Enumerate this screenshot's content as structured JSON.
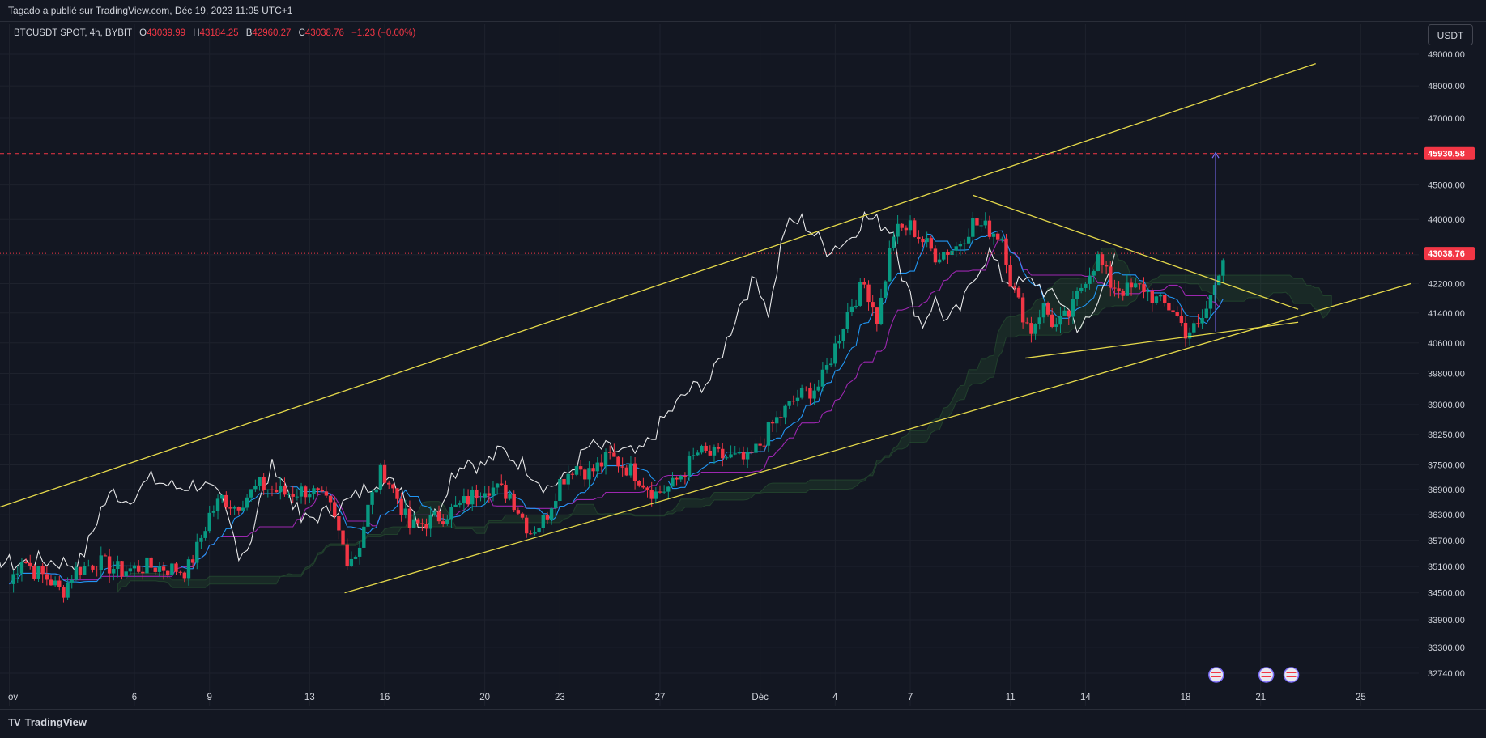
{
  "header": {
    "publish_text": "Tagado a publié sur TradingView.com, Déc 19, 2023 11:05 UTC+1"
  },
  "legend": {
    "symbol": "BTCUSDT SPOT, 4h, BYBIT",
    "open_label": "O",
    "open_value": "43039.99",
    "high_label": "H",
    "high_value": "43184.25",
    "low_label": "B",
    "low_value": "42960.27",
    "close_label": "C",
    "close_value": "43038.76",
    "change": "−1.23 (−0.00%)"
  },
  "currency_button": "USDT",
  "footer": {
    "brand": "TradingView",
    "logo": "TV"
  },
  "colors": {
    "background": "#131722",
    "up": "#089981",
    "down": "#f23645",
    "trendline": "#e5d94a",
    "lagging": "#ffffff",
    "kijun": "#9c27b0",
    "tenkan": "#2196f3",
    "target_line": "#f23645",
    "projection": "#7b6cf6"
  },
  "chart_data": {
    "type": "candlestick",
    "timeframe": "4h",
    "y_axis": {
      "ticks": [
        49000,
        48000,
        47000,
        45000,
        44000,
        43000,
        42200,
        41400,
        40600,
        39800,
        39000,
        38250,
        37500,
        36900,
        36300,
        35700,
        35100,
        34500,
        33900,
        33300,
        32740
      ],
      "tick_labels": [
        "49000.00",
        "48000.00",
        "47000.00",
        "45000.00",
        "44000.00",
        "43000.00",
        "42200.00",
        "41400.00",
        "40600.00",
        "39800.00",
        "39000.00",
        "38250.00",
        "37500.00",
        "36900.00",
        "36300.00",
        "35700.00",
        "35100.00",
        "34500.00",
        "33900.00",
        "33300.00",
        "32740.00"
      ],
      "scale": "log"
    },
    "x_axis": {
      "tick_labels": [
        "ov",
        "6",
        "9",
        "13",
        "16",
        "20",
        "23",
        "27",
        "Déc",
        "4",
        "7",
        "11",
        "14",
        "18",
        "21",
        "25"
      ],
      "tick_days": [
        1,
        6,
        9,
        13,
        16,
        20,
        23,
        27,
        31,
        34,
        37,
        41,
        44,
        48,
        51,
        55
      ]
    },
    "price_labels": [
      {
        "value": 45930.58,
        "label": "45930.58",
        "kind": "target"
      },
      {
        "value": 43038.76,
        "label": "43038.76",
        "kind": "last"
      }
    ],
    "price_path": [
      {
        "d": 1.0,
        "p": 34700
      },
      {
        "d": 1.5,
        "p": 35300
      },
      {
        "d": 2.0,
        "p": 35000
      },
      {
        "d": 2.6,
        "p": 34800
      },
      {
        "d": 3.1,
        "p": 34500
      },
      {
        "d": 3.6,
        "p": 35000
      },
      {
        "d": 4.5,
        "p": 35200
      },
      {
        "d": 5.5,
        "p": 35000
      },
      {
        "d": 6.5,
        "p": 35100
      },
      {
        "d": 7.5,
        "p": 35050
      },
      {
        "d": 8.1,
        "p": 35000
      },
      {
        "d": 8.5,
        "p": 35500
      },
      {
        "d": 9.0,
        "p": 36300
      },
      {
        "d": 9.5,
        "p": 36700
      },
      {
        "d": 10.0,
        "p": 36500
      },
      {
        "d": 11.0,
        "p": 37000
      },
      {
        "d": 12.0,
        "p": 36800
      },
      {
        "d": 13.0,
        "p": 36900
      },
      {
        "d": 13.8,
        "p": 36500
      },
      {
        "d": 14.5,
        "p": 35300
      },
      {
        "d": 14.9,
        "p": 35400
      },
      {
        "d": 15.3,
        "p": 36400
      },
      {
        "d": 15.9,
        "p": 37400
      },
      {
        "d": 16.5,
        "p": 36700
      },
      {
        "d": 17.0,
        "p": 36000
      },
      {
        "d": 18.0,
        "p": 36200
      },
      {
        "d": 19.0,
        "p": 36500
      },
      {
        "d": 20.0,
        "p": 37000
      },
      {
        "d": 21.0,
        "p": 36800
      },
      {
        "d": 21.8,
        "p": 35900
      },
      {
        "d": 22.4,
        "p": 36200
      },
      {
        "d": 23.0,
        "p": 37100
      },
      {
        "d": 23.6,
        "p": 37500
      },
      {
        "d": 24.2,
        "p": 37300
      },
      {
        "d": 25.0,
        "p": 37700
      },
      {
        "d": 26.0,
        "p": 37300
      },
      {
        "d": 26.8,
        "p": 36800
      },
      {
        "d": 27.5,
        "p": 37000
      },
      {
        "d": 28.5,
        "p": 37800
      },
      {
        "d": 29.5,
        "p": 37700
      },
      {
        "d": 30.5,
        "p": 37600
      },
      {
        "d": 31.0,
        "p": 38000
      },
      {
        "d": 31.5,
        "p": 38500
      },
      {
        "d": 32.5,
        "p": 39200
      },
      {
        "d": 33.4,
        "p": 39500
      },
      {
        "d": 34.0,
        "p": 40500
      },
      {
        "d": 34.6,
        "p": 41600
      },
      {
        "d": 35.2,
        "p": 42200
      },
      {
        "d": 35.7,
        "p": 41200
      },
      {
        "d": 36.3,
        "p": 43600
      },
      {
        "d": 37.0,
        "p": 43800
      },
      {
        "d": 38.0,
        "p": 43000
      },
      {
        "d": 38.8,
        "p": 43200
      },
      {
        "d": 39.5,
        "p": 43900
      },
      {
        "d": 40.2,
        "p": 43700
      },
      {
        "d": 40.7,
        "p": 43500
      },
      {
        "d": 41.0,
        "p": 42300
      },
      {
        "d": 41.3,
        "p": 41700
      },
      {
        "d": 41.8,
        "p": 40900
      },
      {
        "d": 42.3,
        "p": 41600
      },
      {
        "d": 42.8,
        "p": 41000
      },
      {
        "d": 43.4,
        "p": 41400
      },
      {
        "d": 44.0,
        "p": 42400
      },
      {
        "d": 44.5,
        "p": 42900
      },
      {
        "d": 45.0,
        "p": 42200
      },
      {
        "d": 45.6,
        "p": 42000
      },
      {
        "d": 46.3,
        "p": 42100
      },
      {
        "d": 46.9,
        "p": 41700
      },
      {
        "d": 47.5,
        "p": 41500
      },
      {
        "d": 48.0,
        "p": 40900
      },
      {
        "d": 48.5,
        "p": 41000
      },
      {
        "d": 48.9,
        "p": 41600
      },
      {
        "d": 49.2,
        "p": 42300
      },
      {
        "d": 49.5,
        "p": 43038
      }
    ]
  }
}
